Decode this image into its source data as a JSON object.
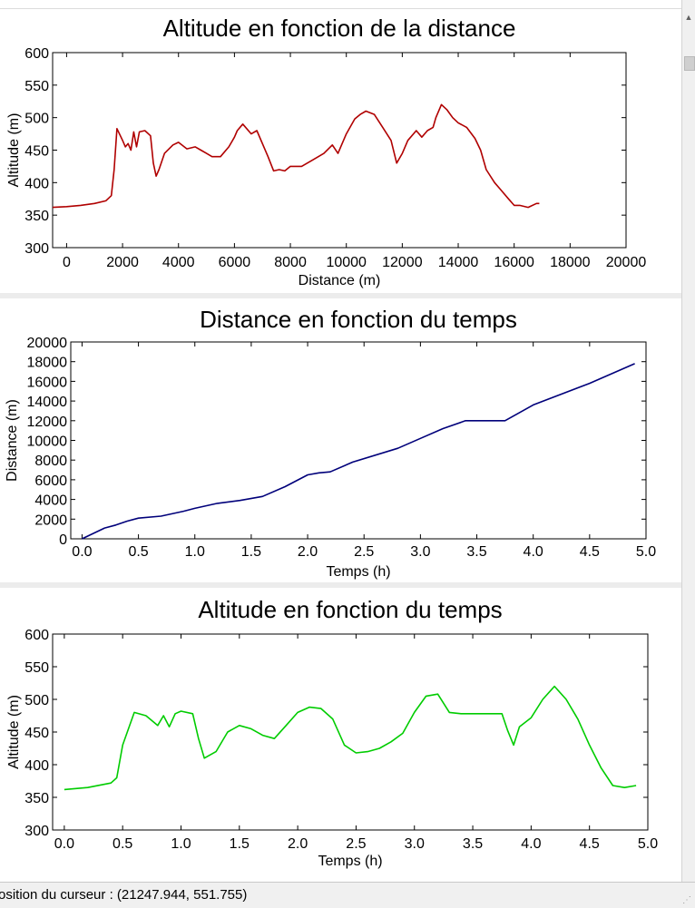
{
  "status": {
    "cursor_text": "osition du curseur : (21247.944, 551.755)"
  },
  "chart_data": [
    {
      "type": "line",
      "title": "Altitude en fonction de la distance",
      "xlabel": "Distance (m)",
      "ylabel": "Altitude (m)",
      "xlim": [
        -500,
        20000
      ],
      "ylim": [
        300,
        600
      ],
      "xticks": [
        0,
        2000,
        4000,
        6000,
        8000,
        10000,
        12000,
        14000,
        16000,
        18000,
        20000
      ],
      "yticks": [
        300,
        350,
        400,
        450,
        500,
        550,
        600
      ],
      "grid": false,
      "color": "#b00000",
      "series": [
        {
          "x": [
            -500,
            0,
            500,
            1000,
            1400,
            1600,
            1700,
            1800,
            2000,
            2100,
            2200,
            2300,
            2400,
            2500,
            2600,
            2800,
            3000,
            3100,
            3200,
            3300,
            3500,
            3800,
            4000,
            4300,
            4600,
            4800,
            5000,
            5200,
            5500,
            5800,
            6000,
            6100,
            6300,
            6600,
            6800,
            7200,
            7400,
            7600,
            7800,
            8000,
            8400,
            8800,
            9200,
            9500,
            9700,
            10000,
            10300,
            10500,
            10700,
            11000,
            11300,
            11600,
            11800,
            12000,
            12200,
            12500,
            12700,
            12900,
            13100,
            13200,
            13400,
            13600,
            13800,
            14000,
            14300,
            14600,
            14800,
            15000,
            15300,
            15500,
            15800,
            16000,
            16200,
            16500,
            16800,
            16900
          ],
          "y": [
            362,
            363,
            365,
            368,
            372,
            380,
            420,
            483,
            465,
            455,
            460,
            450,
            478,
            455,
            478,
            480,
            472,
            430,
            410,
            420,
            445,
            458,
            462,
            452,
            455,
            450,
            445,
            440,
            440,
            455,
            470,
            480,
            490,
            475,
            480,
            440,
            418,
            420,
            418,
            425,
            425,
            435,
            445,
            458,
            445,
            475,
            498,
            505,
            510,
            505,
            485,
            465,
            430,
            445,
            465,
            480,
            470,
            480,
            485,
            500,
            520,
            512,
            500,
            492,
            485,
            468,
            450,
            420,
            400,
            390,
            375,
            365,
            365,
            362,
            368,
            368
          ]
        }
      ]
    },
    {
      "type": "line",
      "title": "Distance en fonction du temps",
      "xlabel": "Temps (h)",
      "ylabel": "Distance (m)",
      "xlim": [
        -0.1,
        5.0
      ],
      "ylim": [
        0,
        20000
      ],
      "xticks": [
        0.0,
        0.5,
        1.0,
        1.5,
        2.0,
        2.5,
        3.0,
        3.5,
        4.0,
        4.5,
        5.0
      ],
      "yticks": [
        0,
        2000,
        4000,
        6000,
        8000,
        10000,
        12000,
        14000,
        16000,
        18000,
        20000
      ],
      "grid": false,
      "color": "#00007a",
      "series": [
        {
          "x": [
            0.0,
            0.2,
            0.3,
            0.4,
            0.5,
            0.7,
            0.9,
            1.0,
            1.2,
            1.4,
            1.6,
            1.8,
            2.0,
            2.1,
            2.2,
            2.4,
            2.8,
            3.0,
            3.2,
            3.4,
            3.6,
            3.75,
            4.0,
            4.5,
            4.9
          ],
          "y": [
            0,
            1100,
            1400,
            1800,
            2100,
            2300,
            2800,
            3100,
            3600,
            3900,
            4300,
            5300,
            6500,
            6700,
            6800,
            7800,
            9200,
            10200,
            11200,
            12000,
            12000,
            12000,
            13600,
            15800,
            17800
          ]
        }
      ]
    },
    {
      "type": "line",
      "title": "Altitude en fonction du temps",
      "xlabel": "Temps (h)",
      "ylabel": "Altitude (m)",
      "xlim": [
        -0.1,
        5.0
      ],
      "ylim": [
        300,
        600
      ],
      "xticks": [
        0.0,
        0.5,
        1.0,
        1.5,
        2.0,
        2.5,
        3.0,
        3.5,
        4.0,
        4.5,
        5.0
      ],
      "yticks": [
        300,
        350,
        400,
        450,
        500,
        550,
        600
      ],
      "grid": false,
      "color": "#00cc00",
      "series": [
        {
          "x": [
            0.0,
            0.2,
            0.4,
            0.45,
            0.5,
            0.6,
            0.7,
            0.8,
            0.85,
            0.9,
            0.95,
            1.0,
            1.1,
            1.15,
            1.2,
            1.3,
            1.4,
            1.5,
            1.6,
            1.7,
            1.8,
            1.9,
            2.0,
            2.1,
            2.2,
            2.3,
            2.4,
            2.5,
            2.6,
            2.7,
            2.8,
            2.9,
            3.0,
            3.1,
            3.2,
            3.3,
            3.4,
            3.5,
            3.6,
            3.75,
            3.8,
            3.85,
            3.9,
            4.0,
            4.1,
            4.2,
            4.3,
            4.4,
            4.5,
            4.6,
            4.7,
            4.8,
            4.9
          ],
          "y": [
            362,
            365,
            372,
            380,
            430,
            480,
            475,
            460,
            475,
            458,
            478,
            482,
            478,
            440,
            410,
            420,
            450,
            460,
            455,
            445,
            440,
            460,
            480,
            488,
            486,
            470,
            430,
            418,
            420,
            425,
            435,
            448,
            480,
            505,
            508,
            480,
            478,
            478,
            478,
            478,
            452,
            430,
            458,
            472,
            500,
            520,
            500,
            470,
            430,
            395,
            368,
            365,
            368
          ]
        }
      ]
    }
  ]
}
